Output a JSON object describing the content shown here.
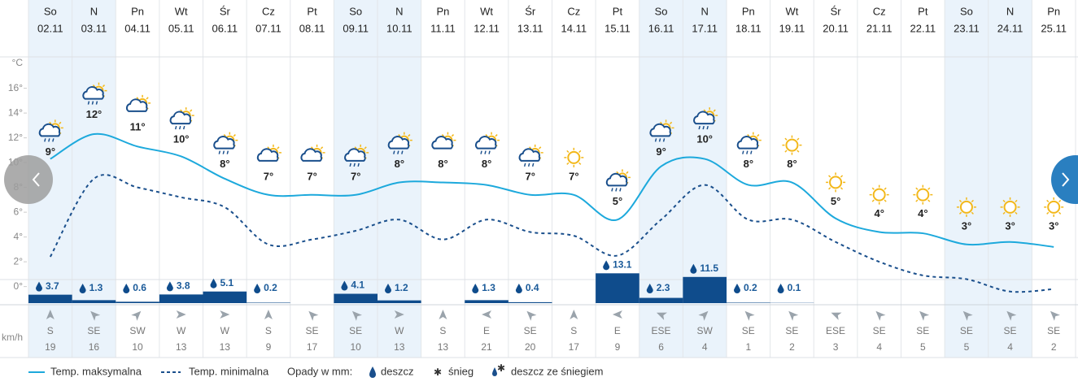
{
  "chart_data": {
    "type": "forecast",
    "y_axis_title": "°C",
    "weekdays": [
      "So",
      "N",
      "Pn",
      "Wt",
      "Śr",
      "Cz",
      "Pt",
      "So",
      "N",
      "Pn",
      "Wt",
      "Śr",
      "Cz",
      "Pt",
      "So",
      "N",
      "Pn",
      "Wt",
      "Śr",
      "Cz",
      "Pt",
      "So",
      "N",
      "Pn"
    ],
    "categories": [
      "02.11",
      "03.11",
      "04.11",
      "05.11",
      "06.11",
      "07.11",
      "08.11",
      "09.11",
      "10.11",
      "11.11",
      "12.11",
      "13.11",
      "14.11",
      "15.11",
      "16.11",
      "17.11",
      "18.11",
      "19.11",
      "20.11",
      "21.11",
      "22.11",
      "23.11",
      "24.11",
      "25.11"
    ],
    "ylim": [
      -1.4,
      18.4
    ],
    "yticks": [
      {
        "value": 0,
        "label": "0°"
      },
      {
        "value": 2,
        "label": "2°"
      },
      {
        "value": 4,
        "label": "4°"
      },
      {
        "value": 6,
        "label": "6°"
      },
      {
        "value": 8,
        "label": "8°"
      },
      {
        "value": 10,
        "label": "10°"
      },
      {
        "value": 12,
        "label": "12°"
      },
      {
        "value": 14,
        "label": "14°"
      },
      {
        "value": 16,
        "label": "16°"
      }
    ],
    "grid": false,
    "series": [
      {
        "name": "Temp. maksymalna",
        "color": "#1da9dc",
        "style": "solid",
        "values": [
          10.3,
          12.3,
          11.3,
          10.5,
          8.7,
          7.4,
          7.4,
          7.4,
          8.4,
          8.4,
          8.2,
          7.4,
          7.4,
          5.4,
          9.7,
          10.3,
          8.2,
          8.4,
          5.5,
          4.4,
          4.3,
          3.4,
          3.6,
          3.2
        ]
      },
      {
        "name": "Temp. minimalna",
        "color": "#1a4f8c",
        "style": "dashed",
        "values": [
          2.4,
          8.7,
          8.0,
          7.2,
          6.4,
          3.4,
          3.8,
          4.5,
          5.4,
          3.8,
          5.4,
          4.4,
          4.1,
          2.5,
          5.4,
          8.2,
          5.4,
          5.4,
          3.6,
          2.0,
          0.9,
          0.6,
          -0.4,
          -0.2
        ]
      }
    ],
    "day_temps": {
      "values": [
        9,
        12,
        11,
        10,
        8,
        7,
        7,
        7,
        8,
        8,
        8,
        7,
        7,
        5,
        9,
        10,
        8,
        8,
        5,
        4,
        4,
        3,
        3,
        3
      ],
      "value_labels": [
        "9°",
        "12°",
        "11°",
        "10°",
        "8°",
        "7°",
        "7°",
        "7°",
        "8°",
        "8°",
        "8°",
        "7°",
        "7°",
        "5°",
        "9°",
        "10°",
        "8°",
        "8°",
        "5°",
        "4°",
        "4°",
        "3°",
        "3°",
        "3°"
      ]
    },
    "precipitation": {
      "name": "Opady w mm:",
      "color": "#0f4c8c",
      "values": [
        3.7,
        1.3,
        0.6,
        3.8,
        5.1,
        0.2,
        null,
        4.1,
        1.2,
        null,
        1.3,
        0.4,
        null,
        13.1,
        2.3,
        11.5,
        0.2,
        0.1,
        null,
        null,
        null,
        null,
        null,
        null
      ]
    },
    "wind_unit": "km/h",
    "wind_directions": [
      "S",
      "SE",
      "SW",
      "W",
      "W",
      "S",
      "SE",
      "SE",
      "W",
      "S",
      "E",
      "SE",
      "S",
      "E",
      "ESE",
      "SW",
      "SE",
      "SE",
      "ESE",
      "SE",
      "SE",
      "SE",
      "SE",
      "SE"
    ],
    "wind_speeds": [
      19,
      16,
      10,
      13,
      13,
      9,
      17,
      10,
      13,
      13,
      21,
      20,
      17,
      9,
      6,
      4,
      1,
      2,
      3,
      4,
      5,
      5,
      4,
      2
    ],
    "legend_types": [
      "deszcz",
      "śnieg",
      "deszcz ze śniegiem"
    ]
  }
}
